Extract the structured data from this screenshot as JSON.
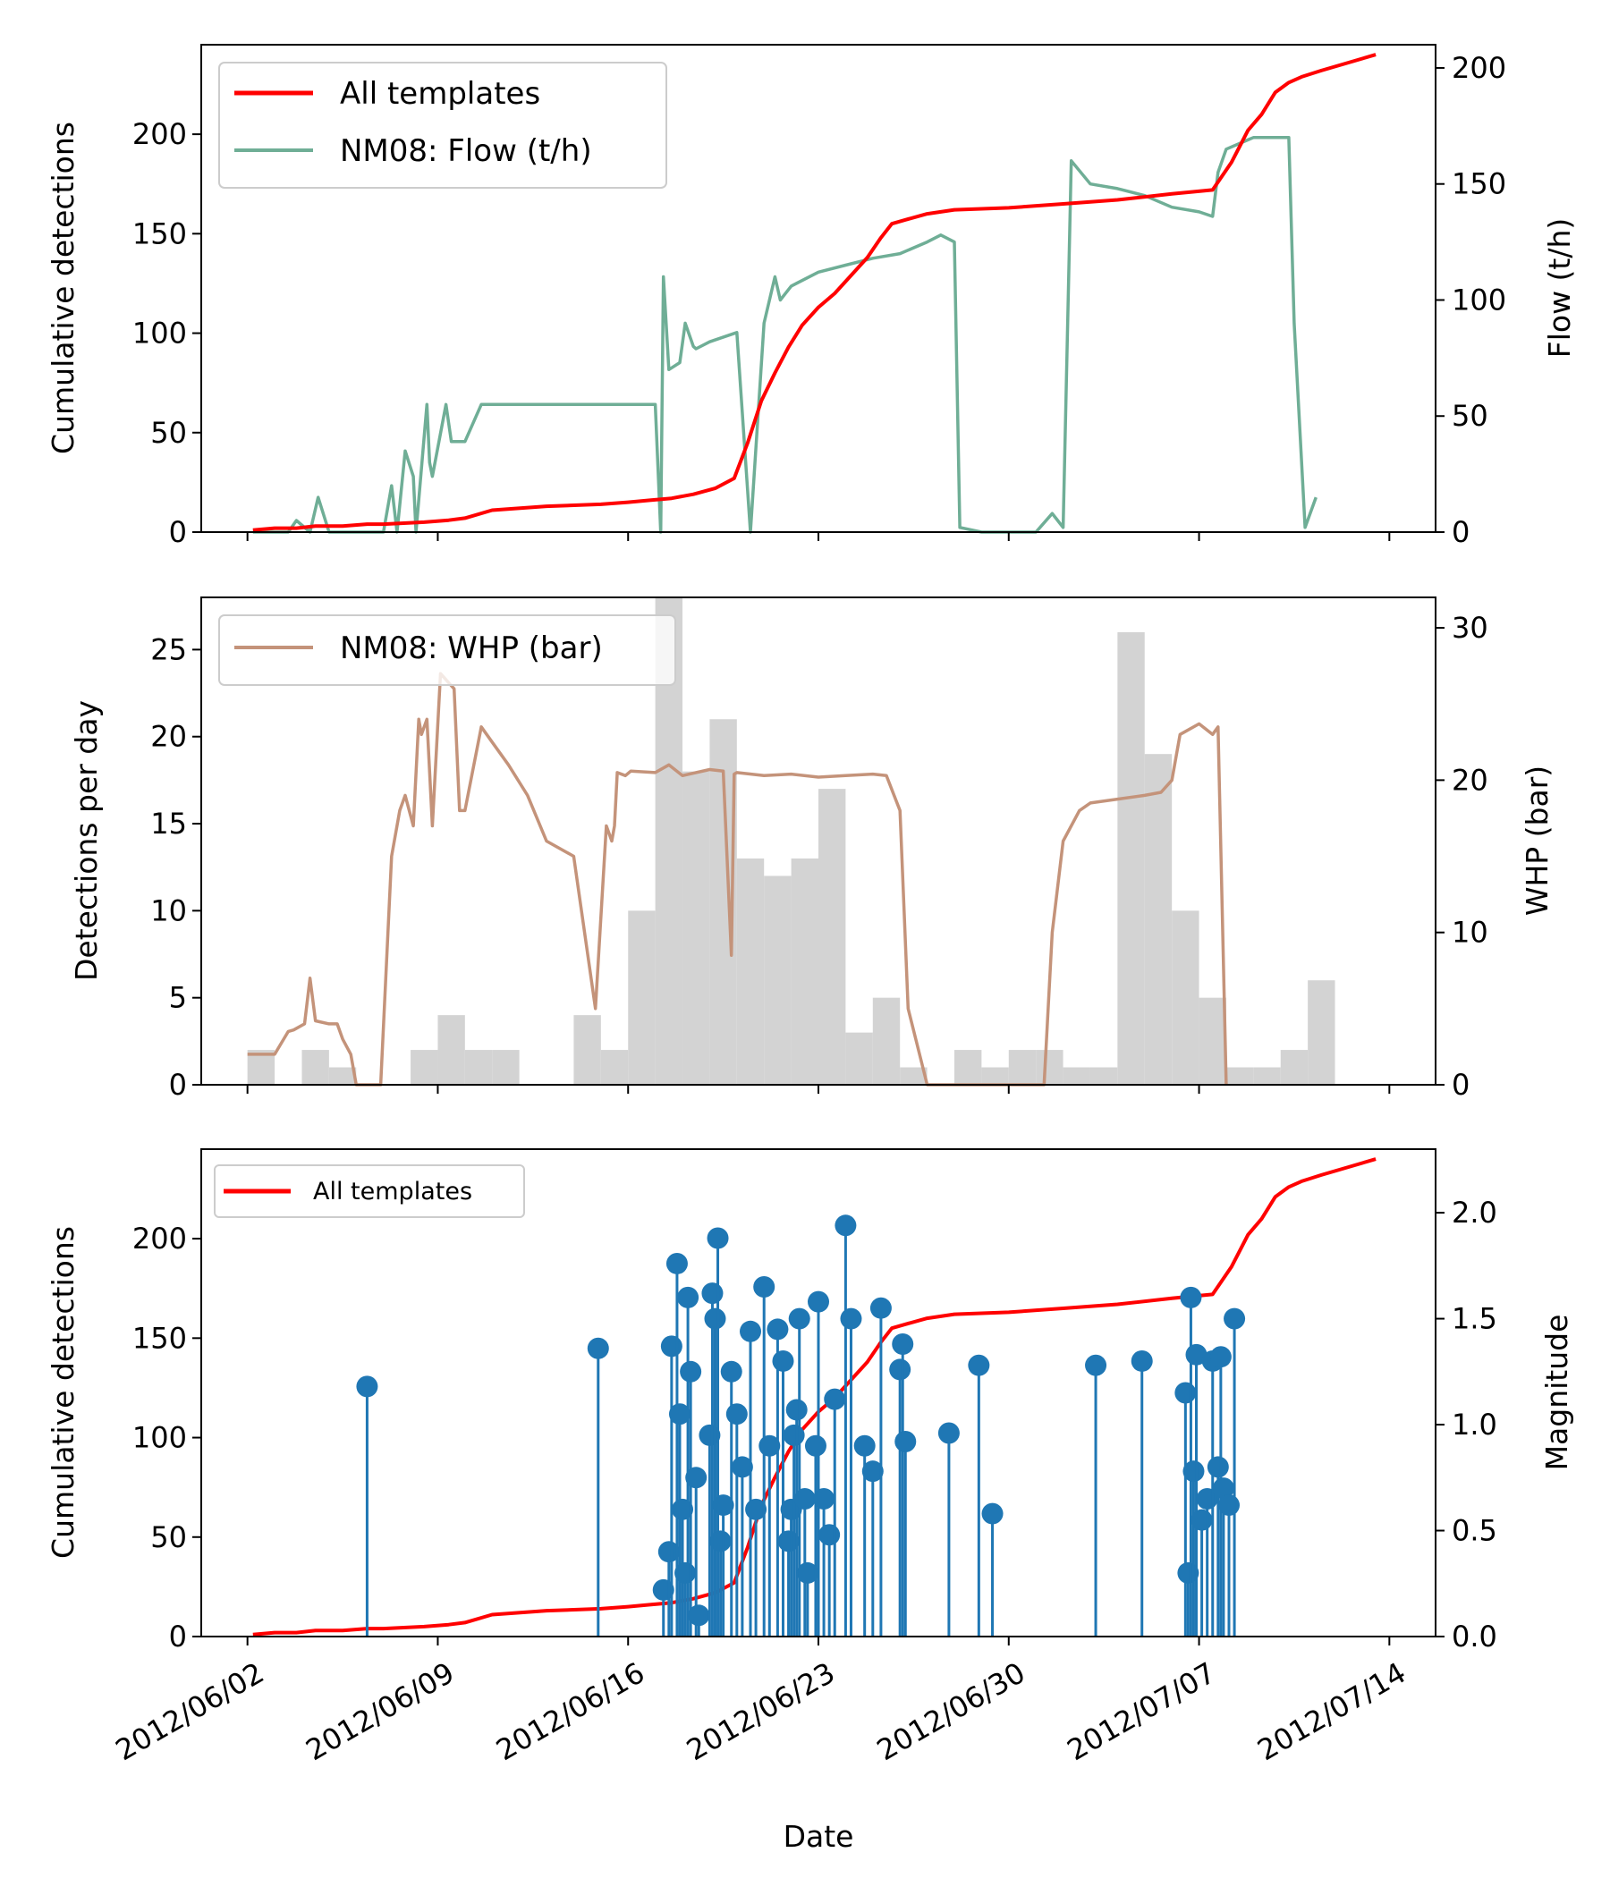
{
  "colors": {
    "cumulative": "#ff0000",
    "flow": "#6fae96",
    "whp": "#c4937a",
    "histogram": "#d3d3d3",
    "magnitude": "#1f77b4",
    "axis": "#000000",
    "legend_border": "#cccccc"
  },
  "chart_data": [
    {
      "type": "line",
      "panel": "top",
      "title": "",
      "ylabel": "Cumulative detections",
      "y2label": "Flow (t/h)",
      "ylim": [
        0,
        245
      ],
      "y2lim": [
        0,
        210
      ],
      "yticks": [
        0,
        50,
        100,
        150,
        200
      ],
      "y2ticks": [
        0,
        50,
        100,
        150,
        200
      ],
      "legend": [
        "All templates",
        "NM08: Flow (t/h)"
      ],
      "legend_position": "top-left",
      "series": [
        {
          "name": "All templates",
          "axis": "left",
          "x": [
            0.2,
            1.0,
            1.8,
            2.5,
            3.5,
            4.4,
            5.0,
            6.5,
            7.4,
            8.0,
            9.0,
            11.0,
            13.0,
            14.0,
            14.8,
            15.6,
            16.4,
            17.2,
            17.9,
            18.4,
            18.9,
            19.4,
            19.9,
            20.4,
            21.0,
            21.6,
            22.2,
            22.8,
            23.3,
            23.7,
            24.2,
            25.0,
            26.0,
            28.0,
            30.0,
            32.0,
            34.0,
            35.5,
            36.2,
            36.8,
            37.3,
            37.8,
            38.3,
            38.8,
            39.5,
            40.5,
            41.5
          ],
          "values": [
            1,
            2,
            2,
            3,
            3,
            4,
            4,
            5,
            6,
            7,
            11,
            13,
            14,
            15,
            16,
            17,
            19,
            22,
            27,
            45,
            66,
            80,
            93,
            104,
            113,
            120,
            129,
            138,
            148,
            155,
            157,
            160,
            162,
            163,
            165,
            167,
            170,
            172,
            186,
            202,
            210,
            221,
            226,
            229,
            232,
            236,
            240
          ]
        },
        {
          "name": "NM08: Flow (t/h)",
          "axis": "right",
          "x": [
            0.2,
            1.5,
            1.8,
            2.3,
            2.6,
            3.0,
            3.5,
            4.0,
            5.0,
            5.3,
            5.5,
            5.8,
            6.1,
            6.2,
            6.6,
            6.7,
            6.8,
            7.3,
            7.5,
            8.0,
            8.6,
            9.0,
            10.0,
            11.0,
            12.0,
            13.0,
            14.0,
            15.0,
            15.2,
            15.3,
            15.5,
            15.9,
            16.1,
            16.4,
            16.5,
            17.0,
            18.0,
            18.5,
            19.0,
            19.4,
            19.6,
            19.8,
            20.0,
            21.0,
            22.0,
            23.0,
            24.0,
            25.0,
            25.5,
            26.0,
            26.2,
            27.0,
            28.0,
            29.0,
            29.6,
            29.8,
            30.0,
            30.3,
            31.0,
            32.0,
            33.0,
            34.0,
            35.0,
            35.5,
            35.7,
            36.0,
            37.0,
            38.0,
            38.3,
            38.5,
            38.9,
            39.3
          ],
          "values": [
            0,
            0,
            5,
            0,
            15,
            0,
            0,
            0,
            0,
            20,
            0,
            35,
            24,
            0,
            55,
            30,
            24,
            55,
            39,
            39,
            55,
            55,
            55,
            55,
            55,
            55,
            55,
            55,
            0,
            110,
            70,
            73,
            90,
            80,
            79,
            82,
            86,
            0,
            90,
            110,
            100,
            103,
            106,
            112,
            115,
            118,
            120,
            125,
            128,
            125,
            2,
            0,
            0,
            0,
            8,
            5,
            2,
            160,
            150,
            148,
            145,
            140,
            138,
            136,
            155,
            165,
            170,
            170,
            170,
            90,
            2,
            15
          ]
        }
      ]
    },
    {
      "type": "bar",
      "panel": "middle",
      "title": "",
      "ylabel": "Detections per day",
      "y2label": "WHP (bar)",
      "ylim": [
        0,
        28
      ],
      "y2lim": [
        0,
        32
      ],
      "yticks": [
        0,
        5,
        10,
        15,
        20,
        25
      ],
      "y2ticks": [
        0,
        10,
        20,
        30
      ],
      "legend": [
        "NM08: WHP (bar)"
      ],
      "legend_position": "top-left",
      "bar_start": 0,
      "bar_width": 1,
      "values": [
        2,
        0,
        2,
        1,
        0,
        0,
        2,
        4,
        2,
        2,
        0,
        0,
        4,
        2,
        10,
        28,
        18,
        21,
        13,
        12,
        13,
        17,
        3,
        5,
        1,
        0,
        2,
        1,
        2,
        2,
        1,
        1,
        26,
        19,
        10,
        5,
        1,
        1,
        2,
        6
      ],
      "series": [
        {
          "name": "NM08: WHP (bar)",
          "axis": "right",
          "x": [
            0.0,
            0.8,
            1.0,
            1.5,
            1.7,
            2.1,
            2.3,
            2.5,
            3.0,
            3.3,
            3.5,
            3.8,
            4.0,
            4.4,
            4.7,
            4.9,
            5.3,
            5.6,
            5.8,
            6.1,
            6.3,
            6.4,
            6.6,
            6.8,
            7.1,
            7.6,
            7.8,
            8.0,
            8.6,
            9.0,
            9.6,
            10.3,
            11.0,
            12.0,
            12.8,
            13.2,
            13.4,
            13.5,
            13.6,
            13.9,
            14.1,
            15.0,
            15.5,
            16.0,
            17.0,
            17.5,
            17.8,
            17.9,
            18.0,
            19.0,
            20.0,
            21.0,
            22.0,
            23.0,
            23.5,
            24.0,
            24.3,
            25.0,
            25.5,
            26.0,
            28.0,
            28.5,
            29.0,
            29.3,
            29.6,
            30.0,
            30.6,
            31.0,
            33.0,
            33.6,
            34.0,
            34.3,
            35.0,
            35.5,
            35.7,
            36.0
          ],
          "values": [
            2,
            2,
            2,
            3.5,
            3.6,
            4,
            7,
            4.2,
            4,
            4,
            3,
            2,
            0,
            0,
            0,
            0,
            15,
            18,
            19,
            17,
            24,
            23,
            24,
            17,
            27,
            26,
            18,
            18,
            23.5,
            22.5,
            21,
            19,
            16,
            15,
            5,
            17,
            16,
            17,
            20.5,
            20.3,
            20.6,
            20.5,
            21,
            20.3,
            20.7,
            20.6,
            8.5,
            20.4,
            20.5,
            20.3,
            20.4,
            20.2,
            20.3,
            20.4,
            20.3,
            18,
            5,
            0,
            0,
            0,
            0,
            0,
            0,
            0,
            10,
            16,
            18,
            18.5,
            19,
            19.2,
            20,
            23,
            23.7,
            23,
            23.5,
            0
          ]
        }
      ]
    },
    {
      "type": "scatter",
      "panel": "bottom",
      "title": "",
      "xlabel": "Date",
      "ylabel": "Cumulative detections",
      "y2label": "Magnitude",
      "ylim": [
        0,
        245
      ],
      "y2lim": [
        0,
        2.3
      ],
      "yticks": [
        0,
        50,
        100,
        150,
        200
      ],
      "y2ticks": [
        0.0,
        0.5,
        1.0,
        1.5,
        2.0
      ],
      "legend": [
        "All templates"
      ],
      "legend_position": "top-left",
      "x_ticks": [
        0,
        7,
        14,
        21,
        28,
        35,
        42
      ],
      "x_tick_labels": [
        "2012/06/02",
        "2012/06/09",
        "2012/06/16",
        "2012/06/23",
        "2012/06/30",
        "2012/07/07",
        "2012/07/14"
      ],
      "xlim": [
        -1.7,
        43.7
      ],
      "series": [
        {
          "name": "All templates",
          "axis": "left",
          "x": [
            0.2,
            1.0,
            1.8,
            2.5,
            3.5,
            4.4,
            5.0,
            6.5,
            7.4,
            8.0,
            9.0,
            11.0,
            13.0,
            14.0,
            14.8,
            15.6,
            16.4,
            17.2,
            17.9,
            18.4,
            18.9,
            19.4,
            19.9,
            20.4,
            21.0,
            21.6,
            22.2,
            22.8,
            23.3,
            23.7,
            24.2,
            25.0,
            26.0,
            28.0,
            30.0,
            32.0,
            34.0,
            35.5,
            36.2,
            36.8,
            37.3,
            37.8,
            38.3,
            38.8,
            39.5,
            40.5,
            41.5
          ],
          "values": [
            1,
            2,
            2,
            3,
            3,
            4,
            4,
            5,
            6,
            7,
            11,
            13,
            14,
            15,
            16,
            17,
            19,
            22,
            27,
            45,
            66,
            80,
            93,
            104,
            113,
            120,
            129,
            138,
            148,
            155,
            157,
            160,
            162,
            163,
            165,
            167,
            170,
            172,
            186,
            202,
            210,
            221,
            226,
            229,
            232,
            236,
            240
          ]
        },
        {
          "name": "Magnitude",
          "axis": "right",
          "x": [
            4.4,
            12.9,
            15.3,
            15.5,
            15.6,
            15.8,
            15.9,
            16.0,
            16.1,
            16.2,
            16.3,
            16.5,
            16.6,
            17.0,
            17.1,
            17.2,
            17.3,
            17.4,
            17.5,
            17.8,
            18.0,
            18.2,
            18.5,
            18.7,
            19.0,
            19.2,
            19.5,
            19.7,
            19.9,
            20.0,
            20.1,
            20.2,
            20.3,
            20.5,
            20.6,
            20.9,
            21.0,
            21.2,
            21.4,
            21.6,
            22.0,
            22.2,
            22.7,
            23.0,
            23.3,
            24.0,
            24.1,
            24.2,
            25.8,
            26.9,
            27.4,
            31.2,
            32.9,
            34.5,
            34.6,
            34.7,
            34.8,
            34.9,
            35.1,
            35.3,
            35.5,
            35.7,
            35.8,
            35.9,
            36.1,
            36.3
          ],
          "values": [
            1.18,
            1.36,
            0.22,
            0.4,
            1.37,
            1.76,
            1.05,
            0.6,
            0.3,
            1.6,
            1.25,
            0.75,
            0.1,
            0.95,
            1.62,
            1.5,
            1.88,
            0.45,
            0.62,
            1.25,
            1.05,
            0.8,
            1.44,
            0.6,
            1.65,
            0.9,
            1.45,
            1.3,
            0.45,
            0.6,
            0.95,
            1.07,
            1.5,
            0.65,
            0.3,
            0.9,
            1.58,
            0.65,
            0.48,
            1.12,
            1.94,
            1.5,
            0.9,
            0.78,
            1.55,
            1.26,
            1.38,
            0.92,
            0.96,
            1.28,
            0.58,
            1.28,
            1.3,
            1.15,
            0.3,
            1.6,
            0.78,
            1.33,
            0.55,
            0.65,
            1.3,
            0.8,
            1.32,
            0.7,
            0.62,
            1.5
          ]
        }
      ]
    }
  ]
}
